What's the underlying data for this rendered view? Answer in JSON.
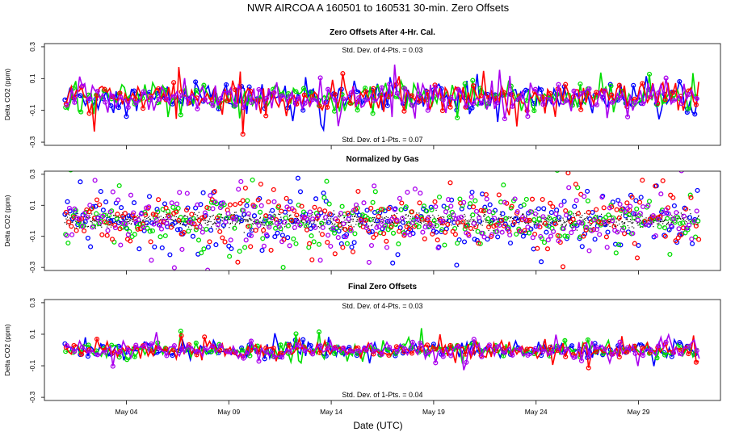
{
  "figure": {
    "title": "NWR   AIRCOA A   160501 to 160531   30-min. Zero Offsets",
    "xlabel": "Date (UTC)"
  },
  "colors": {
    "series": [
      "#0000ff",
      "#00dd00",
      "#ff0000",
      "#aa00ee"
    ],
    "reference": "#000000"
  },
  "chart_data": [
    {
      "type": "scatter",
      "title": "Zero Offsets After 4-Hr. Cal.",
      "ylabel": "Delta CO2 (ppm)",
      "xlim": [
        "2016-04-30",
        "2016-06-02"
      ],
      "ylim": [
        -0.32,
        0.32
      ],
      "yticks": [
        0.3,
        0.1,
        -0.1,
        -0.3
      ],
      "xticks": [
        "May 04",
        "May 09",
        "May 14",
        "May 19",
        "May 24",
        "May 29"
      ],
      "show_xtick_labels": false,
      "x_range": [
        "2016-05-01",
        "2016-05-31"
      ],
      "baseline": -0.02,
      "spread": 0.045,
      "annotations": [
        "Std. Dev. of 4-Pts. =  0.03",
        "Std. Dev. of 1-Pts. =  0.07"
      ],
      "connect_lines": true,
      "show_reference": false
    },
    {
      "type": "scatter",
      "title": "Normalized by Gas",
      "ylabel": "Delta CO2 (ppm)",
      "xlim": [
        "2016-04-30",
        "2016-06-02"
      ],
      "ylim": [
        -0.32,
        0.32
      ],
      "yticks": [
        0.3,
        0.1,
        -0.1,
        -0.3
      ],
      "xticks": [
        "May 04",
        "May 09",
        "May 14",
        "May 19",
        "May 24",
        "May 29"
      ],
      "show_xtick_labels": false,
      "x_range": [
        "2016-05-01",
        "2016-05-31"
      ],
      "baseline": 0.0,
      "spread": 0.09,
      "annotations": [],
      "connect_lines": false,
      "show_reference": true
    },
    {
      "type": "scatter",
      "title": "Final Zero Offsets",
      "ylabel": "Delta CO2 (ppm)",
      "xlim": [
        "2016-04-30",
        "2016-06-02"
      ],
      "ylim": [
        -0.32,
        0.32
      ],
      "yticks": [
        0.3,
        0.1,
        -0.1,
        -0.3
      ],
      "xticks": [
        "May 04",
        "May 09",
        "May 14",
        "May 19",
        "May 24",
        "May 29"
      ],
      "show_xtick_labels": true,
      "x_range": [
        "2016-05-01",
        "2016-05-31"
      ],
      "baseline": 0.0,
      "spread": 0.025,
      "annotations": [
        "Std. Dev. of 4-Pts. =  0.03",
        "Std. Dev. of 1-Pts. =  0.04"
      ],
      "connect_lines": true,
      "show_reference": false
    }
  ]
}
